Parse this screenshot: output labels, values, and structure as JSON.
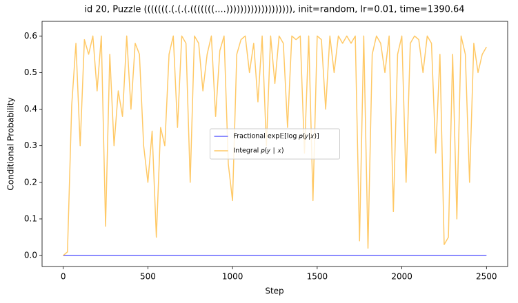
{
  "chart_data": {
    "type": "line",
    "title": "id 20, Puzzle (((((((.(.(.(.(((((((....))))))))))))))))))), init=random, lr=0.01, time=1390.64",
    "x_label": "Step",
    "y_label": "Conditional Probability",
    "x": [
      0,
      25,
      50,
      75,
      100,
      125,
      150,
      175,
      200,
      225,
      250,
      275,
      300,
      325,
      350,
      375,
      400,
      425,
      450,
      475,
      500,
      525,
      550,
      575,
      600,
      625,
      650,
      675,
      700,
      725,
      750,
      775,
      800,
      825,
      850,
      875,
      900,
      925,
      950,
      975,
      1000,
      1025,
      1050,
      1075,
      1100,
      1125,
      1150,
      1175,
      1200,
      1225,
      1250,
      1275,
      1300,
      1325,
      1350,
      1375,
      1400,
      1425,
      1450,
      1475,
      1500,
      1525,
      1550,
      1575,
      1600,
      1625,
      1650,
      1675,
      1700,
      1725,
      1750,
      1775,
      1800,
      1825,
      1850,
      1875,
      1900,
      1925,
      1950,
      1975,
      2000,
      2025,
      2050,
      2075,
      2100,
      2125,
      2150,
      2175,
      2200,
      2225,
      2250,
      2275,
      2300,
      2325,
      2350,
      2375,
      2400,
      2425,
      2450,
      2475,
      2500
    ],
    "series": [
      {
        "name": "Fractional exp𝔼[log 𝑝(𝑦|𝑥)]",
        "color": "#0000ff",
        "values": [
          0,
          0,
          0,
          0,
          0,
          0,
          0,
          0,
          0,
          0,
          0,
          0,
          0,
          0,
          0,
          0,
          0,
          0,
          0,
          0,
          0,
          0,
          0,
          0,
          0,
          0,
          0,
          0,
          0,
          0,
          0,
          0,
          0,
          0,
          0,
          0,
          0,
          0,
          0,
          0,
          0,
          0,
          0,
          0,
          0,
          0,
          0,
          0,
          0,
          0,
          0,
          0,
          0,
          0,
          0,
          0,
          0,
          0,
          0,
          0,
          0,
          0,
          0,
          0,
          0,
          0,
          0,
          0,
          0,
          0,
          0,
          0,
          0,
          0,
          0,
          0,
          0,
          0,
          0,
          0,
          0,
          0,
          0,
          0,
          0,
          0,
          0,
          0,
          0,
          0,
          0,
          0,
          0,
          0,
          0,
          0,
          0,
          0,
          0,
          0,
          0
        ]
      },
      {
        "name": "Integral 𝑝(𝑦 ∣ 𝑥)",
        "color": "#ffa500",
        "values": [
          0,
          0.01,
          0.41,
          0.58,
          0.3,
          0.59,
          0.55,
          0.6,
          0.45,
          0.6,
          0.08,
          0.55,
          0.3,
          0.45,
          0.38,
          0.6,
          0.4,
          0.58,
          0.55,
          0.3,
          0.2,
          0.34,
          0.05,
          0.35,
          0.3,
          0.55,
          0.6,
          0.35,
          0.6,
          0.58,
          0.2,
          0.6,
          0.58,
          0.45,
          0.55,
          0.6,
          0.38,
          0.56,
          0.6,
          0.25,
          0.15,
          0.55,
          0.59,
          0.6,
          0.5,
          0.58,
          0.42,
          0.6,
          0.3,
          0.6,
          0.47,
          0.6,
          0.58,
          0.35,
          0.6,
          0.59,
          0.6,
          0.28,
          0.6,
          0.15,
          0.6,
          0.59,
          0.4,
          0.6,
          0.5,
          0.6,
          0.58,
          0.6,
          0.58,
          0.6,
          0.04,
          0.6,
          0.02,
          0.55,
          0.6,
          0.58,
          0.5,
          0.6,
          0.12,
          0.55,
          0.6,
          0.2,
          0.58,
          0.6,
          0.59,
          0.5,
          0.6,
          0.58,
          0.28,
          0.55,
          0.03,
          0.05,
          0.55,
          0.1,
          0.6,
          0.55,
          0.2,
          0.58,
          0.5,
          0.55,
          0.57
        ]
      }
    ],
    "xlim": [
      -125,
      2625
    ],
    "ylim": [
      -0.03,
      0.64
    ],
    "xticks": [
      0,
      500,
      1000,
      1500,
      2000,
      2500
    ],
    "yticks": [
      {
        "value": 0,
        "label": "0.0"
      },
      0.1,
      0.2,
      0.3,
      0.4,
      0.5,
      0.6
    ],
    "legend": "center"
  }
}
